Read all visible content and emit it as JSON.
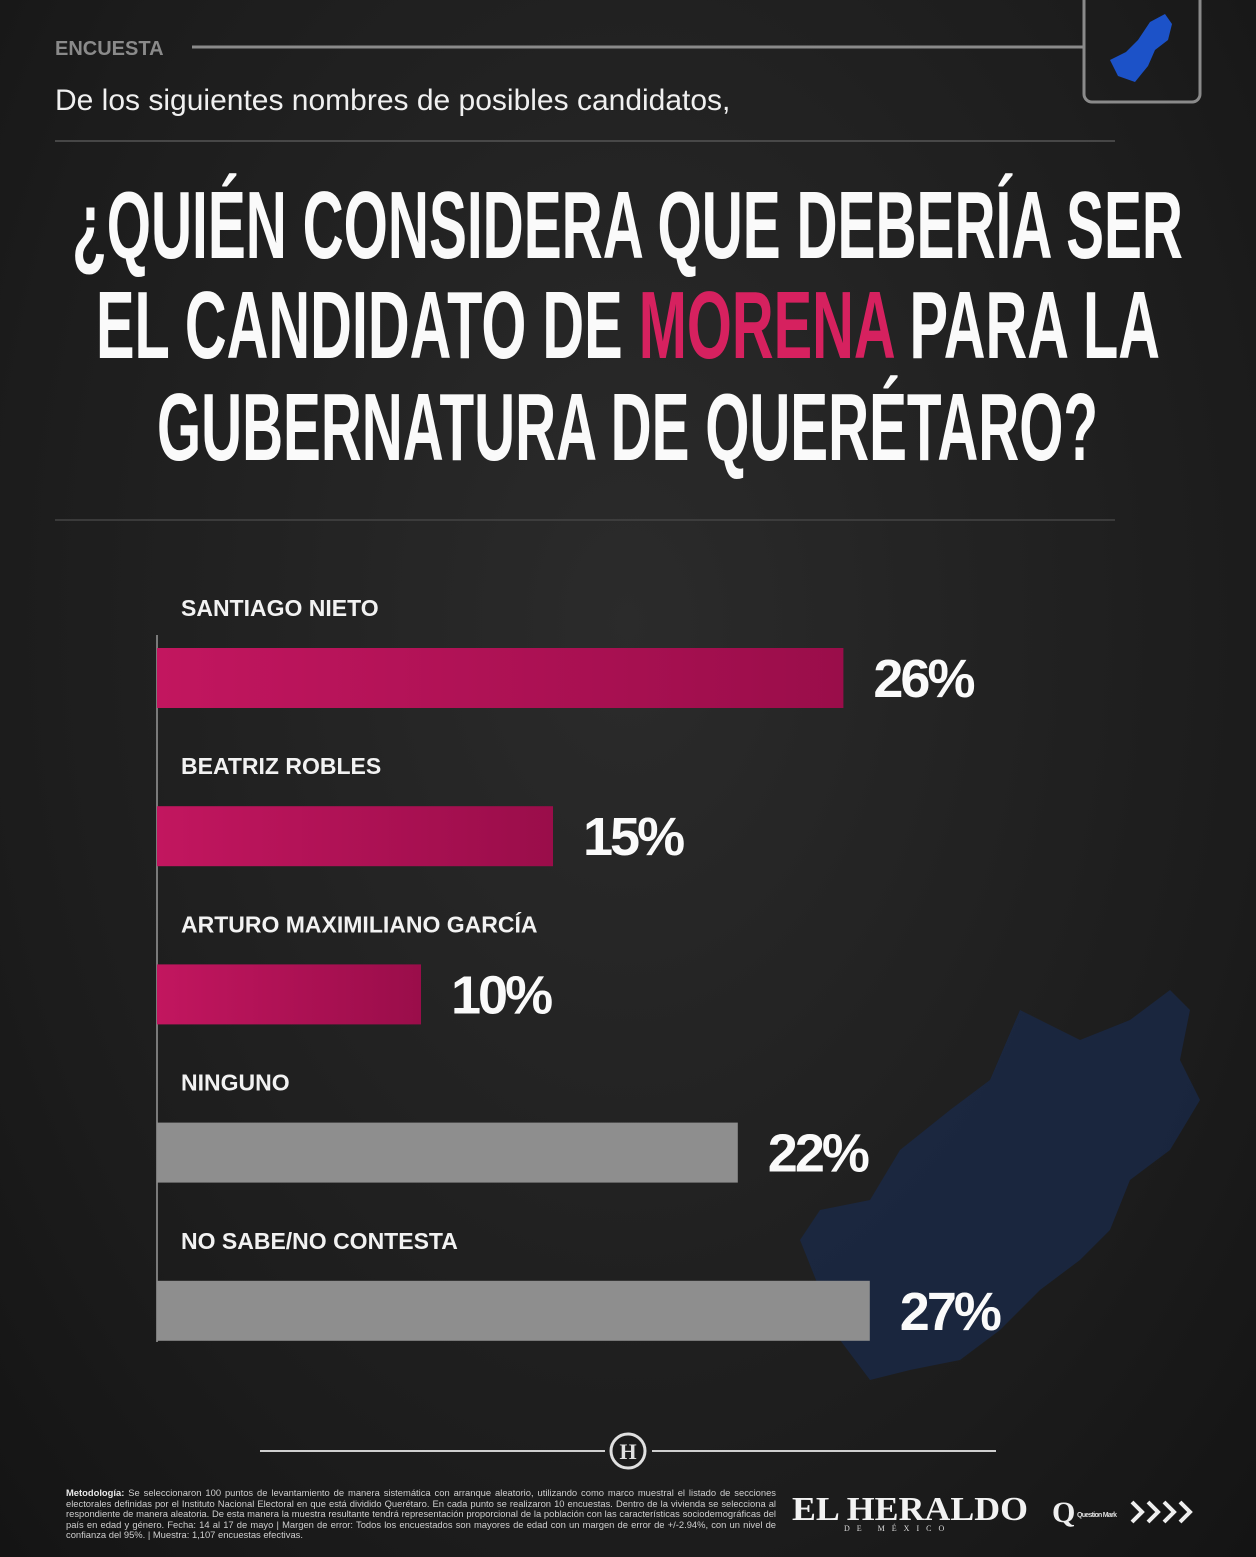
{
  "header": {
    "kicker": "ENCUESTA",
    "subtitle": "De los siguientes nombres de posibles candidatos,"
  },
  "chart_data": {
    "type": "bar",
    "orientation": "horizontal",
    "title": [
      "¿QUIÉN CONSIDERA QUE DEBERÍA SER",
      "EL CANDIDATO DE ",
      "MORENA",
      " PARA LA",
      "GUBERNATURA DE QUERÉTARO?"
    ],
    "title_highlight_color": "#d6215f",
    "categories": [
      "SANTIAGO NIETO",
      "BEATRIZ ROBLES",
      "ARTURO MAXIMILIANO GARCÍA",
      "NINGUNO",
      "NO SABE/NO CONTESTA"
    ],
    "values": [
      26,
      15,
      10,
      22,
      27
    ],
    "value_labels": [
      "26%",
      "15%",
      "10%",
      "22%",
      "27%"
    ],
    "colors": [
      "#b8145a",
      "#b8145a",
      "#b8145a",
      "#8e8e8e",
      "#8e8e8e"
    ]
  },
  "footer": {
    "methodology_label": "Metodología:",
    "methodology": "Se seleccionaron 100 puntos de levantamiento de manera sistemática con arranque aleatorio, utilizando como marco muestral el listado de secciones electorales definidas por el Instituto Nacional Electoral en que está dividido Querétaro. En cada punto se realizaron 10 encuestas. Dentro de la vivienda se selecciona al respondiente de manera aleatoria. De esta manera la muestra resultante tendrá representación proporcional de la población con las características sociodemográficas del país en edad y género. Fecha: 14 al 17 de mayo | Margen de error: Todos los encuestados son mayores de edad con un margen de error de +/-2.94%, con un nivel de confianza del 95%. | Muestra: 1,107 encuestas efectivas.",
    "logo": "EL HERALDO",
    "logo_sub": "DE MÉXICO",
    "partner": "Question Mark"
  }
}
